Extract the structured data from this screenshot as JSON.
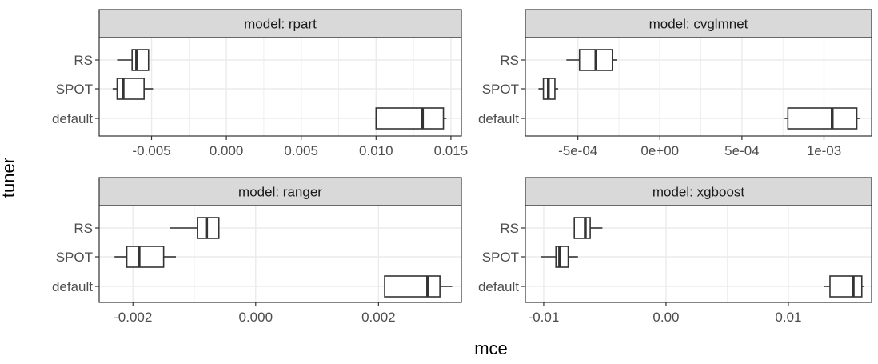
{
  "chart_data": {
    "type": "boxplot",
    "xlabel": "mce",
    "ylabel": "tuner",
    "categories": [
      "RS",
      "SPOT",
      "default"
    ],
    "colors": {
      "strip_bg": "#d9d9d9",
      "box_line": "#333333",
      "grid": "#ebebeb",
      "text": "#4d4d4d"
    },
    "grid": true,
    "panels": [
      {
        "title": "model: rpart",
        "xlim": [
          -0.0085,
          0.0157
        ],
        "ticks": [
          -0.005,
          0.0,
          0.005,
          0.01,
          0.015
        ],
        "tick_labels": [
          "-0.005",
          "0.000",
          "0.005",
          "0.010",
          "0.015"
        ],
        "boxes": [
          {
            "name": "RS",
            "min": -0.0073,
            "q1": -0.0063,
            "median": -0.006,
            "q3": -0.0052,
            "max": -0.0052
          },
          {
            "name": "SPOT",
            "min": -0.0076,
            "q1": -0.0073,
            "median": -0.0069,
            "q3": -0.0055,
            "max": -0.0049
          },
          {
            "name": "default",
            "min": 0.01,
            "q1": 0.01,
            "median": 0.0131,
            "q3": 0.0145,
            "max": 0.0147
          }
        ]
      },
      {
        "title": "model: cvglmnet",
        "xlim": [
          -0.00082,
          0.00129
        ],
        "ticks": [
          -0.0005,
          0.0,
          0.0005,
          0.001
        ],
        "tick_labels": [
          "-5e-04",
          "0e+00",
          "5e-04",
          "1e-03"
        ],
        "boxes": [
          {
            "name": "RS",
            "min": -0.00057,
            "q1": -0.00049,
            "median": -0.00039,
            "q3": -0.00029,
            "max": -0.00026
          },
          {
            "name": "SPOT",
            "min": -0.00074,
            "q1": -0.00071,
            "median": -0.00068,
            "q3": -0.00064,
            "max": -0.00062
          },
          {
            "name": "default",
            "min": 0.00076,
            "q1": 0.00078,
            "median": 0.00105,
            "q3": 0.0012,
            "max": 0.00122
          }
        ]
      },
      {
        "title": "model: ranger",
        "xlim": [
          -0.00255,
          0.00335
        ],
        "ticks": [
          -0.002,
          0.0,
          0.002
        ],
        "tick_labels": [
          "-0.002",
          "0.000",
          "0.002"
        ],
        "boxes": [
          {
            "name": "RS",
            "min": -0.0014,
            "q1": -0.00095,
            "median": -0.0008,
            "q3": -0.0006,
            "max": -0.0006
          },
          {
            "name": "SPOT",
            "min": -0.0023,
            "q1": -0.0021,
            "median": -0.0019,
            "q3": -0.0015,
            "max": -0.0013
          },
          {
            "name": "default",
            "min": 0.0021,
            "q1": 0.0021,
            "median": 0.0028,
            "q3": 0.003,
            "max": 0.0032
          }
        ]
      },
      {
        "title": "model: xgboost",
        "xlim": [
          -0.0115,
          0.0168
        ],
        "ticks": [
          -0.01,
          0.0,
          0.01
        ],
        "tick_labels": [
          "-0.01",
          "0.00",
          "0.01"
        ],
        "boxes": [
          {
            "name": "RS",
            "min": -0.0075,
            "q1": -0.0075,
            "median": -0.0066,
            "q3": -0.0062,
            "max": -0.0052
          },
          {
            "name": "SPOT",
            "min": -0.0102,
            "q1": -0.009,
            "median": -0.0087,
            "q3": -0.008,
            "max": -0.0072
          },
          {
            "name": "default",
            "min": 0.0129,
            "q1": 0.0134,
            "median": 0.0153,
            "q3": 0.016,
            "max": 0.0162
          }
        ]
      }
    ]
  }
}
